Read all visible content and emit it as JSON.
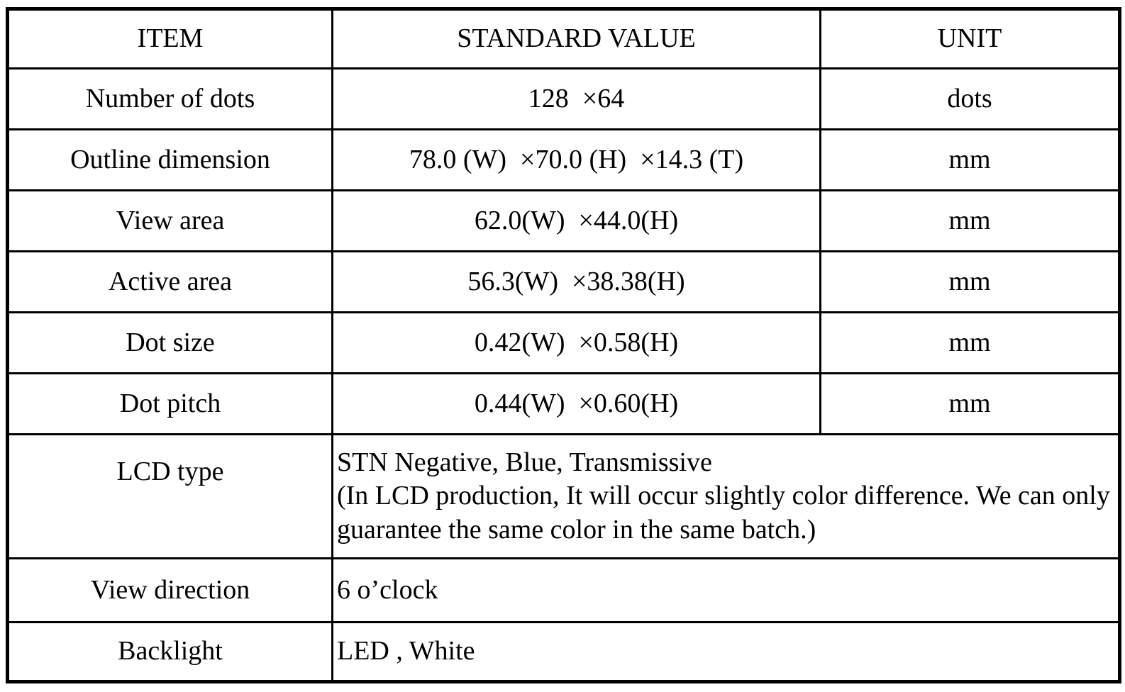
{
  "table": {
    "headers": {
      "item": "ITEM",
      "value": "STANDARD VALUE",
      "unit": "UNIT"
    },
    "rows": [
      {
        "item": "Number of dots",
        "value": "128  ×64",
        "unit": "dots"
      },
      {
        "item": "Outline dimension",
        "value": "78.0 (W)  ×70.0 (H)  ×14.3 (T)",
        "unit": "mm"
      },
      {
        "item": "View area",
        "value": "62.0(W)  ×44.0(H)",
        "unit": "mm"
      },
      {
        "item": "Active area",
        "value": "56.3(W)  ×38.38(H)",
        "unit": "mm"
      },
      {
        "item": "Dot size",
        "value": "0.42(W)  ×0.58(H)",
        "unit": "mm"
      },
      {
        "item": "Dot pitch",
        "value": "0.44(W)  ×0.60(H)",
        "unit": "mm"
      },
      {
        "item": "LCD type",
        "value": "STN Negative, Blue, Transmissive\n(In LCD production, It will occur slightly color difference. We can only guarantee the same color in the same batch.)"
      },
      {
        "item": "View direction",
        "value": "6 o’clock"
      },
      {
        "item": "Backlight",
        "value": "LED , White"
      }
    ],
    "colors": {
      "border": "#000000",
      "text": "#000000",
      "background": "#ffffff"
    }
  }
}
